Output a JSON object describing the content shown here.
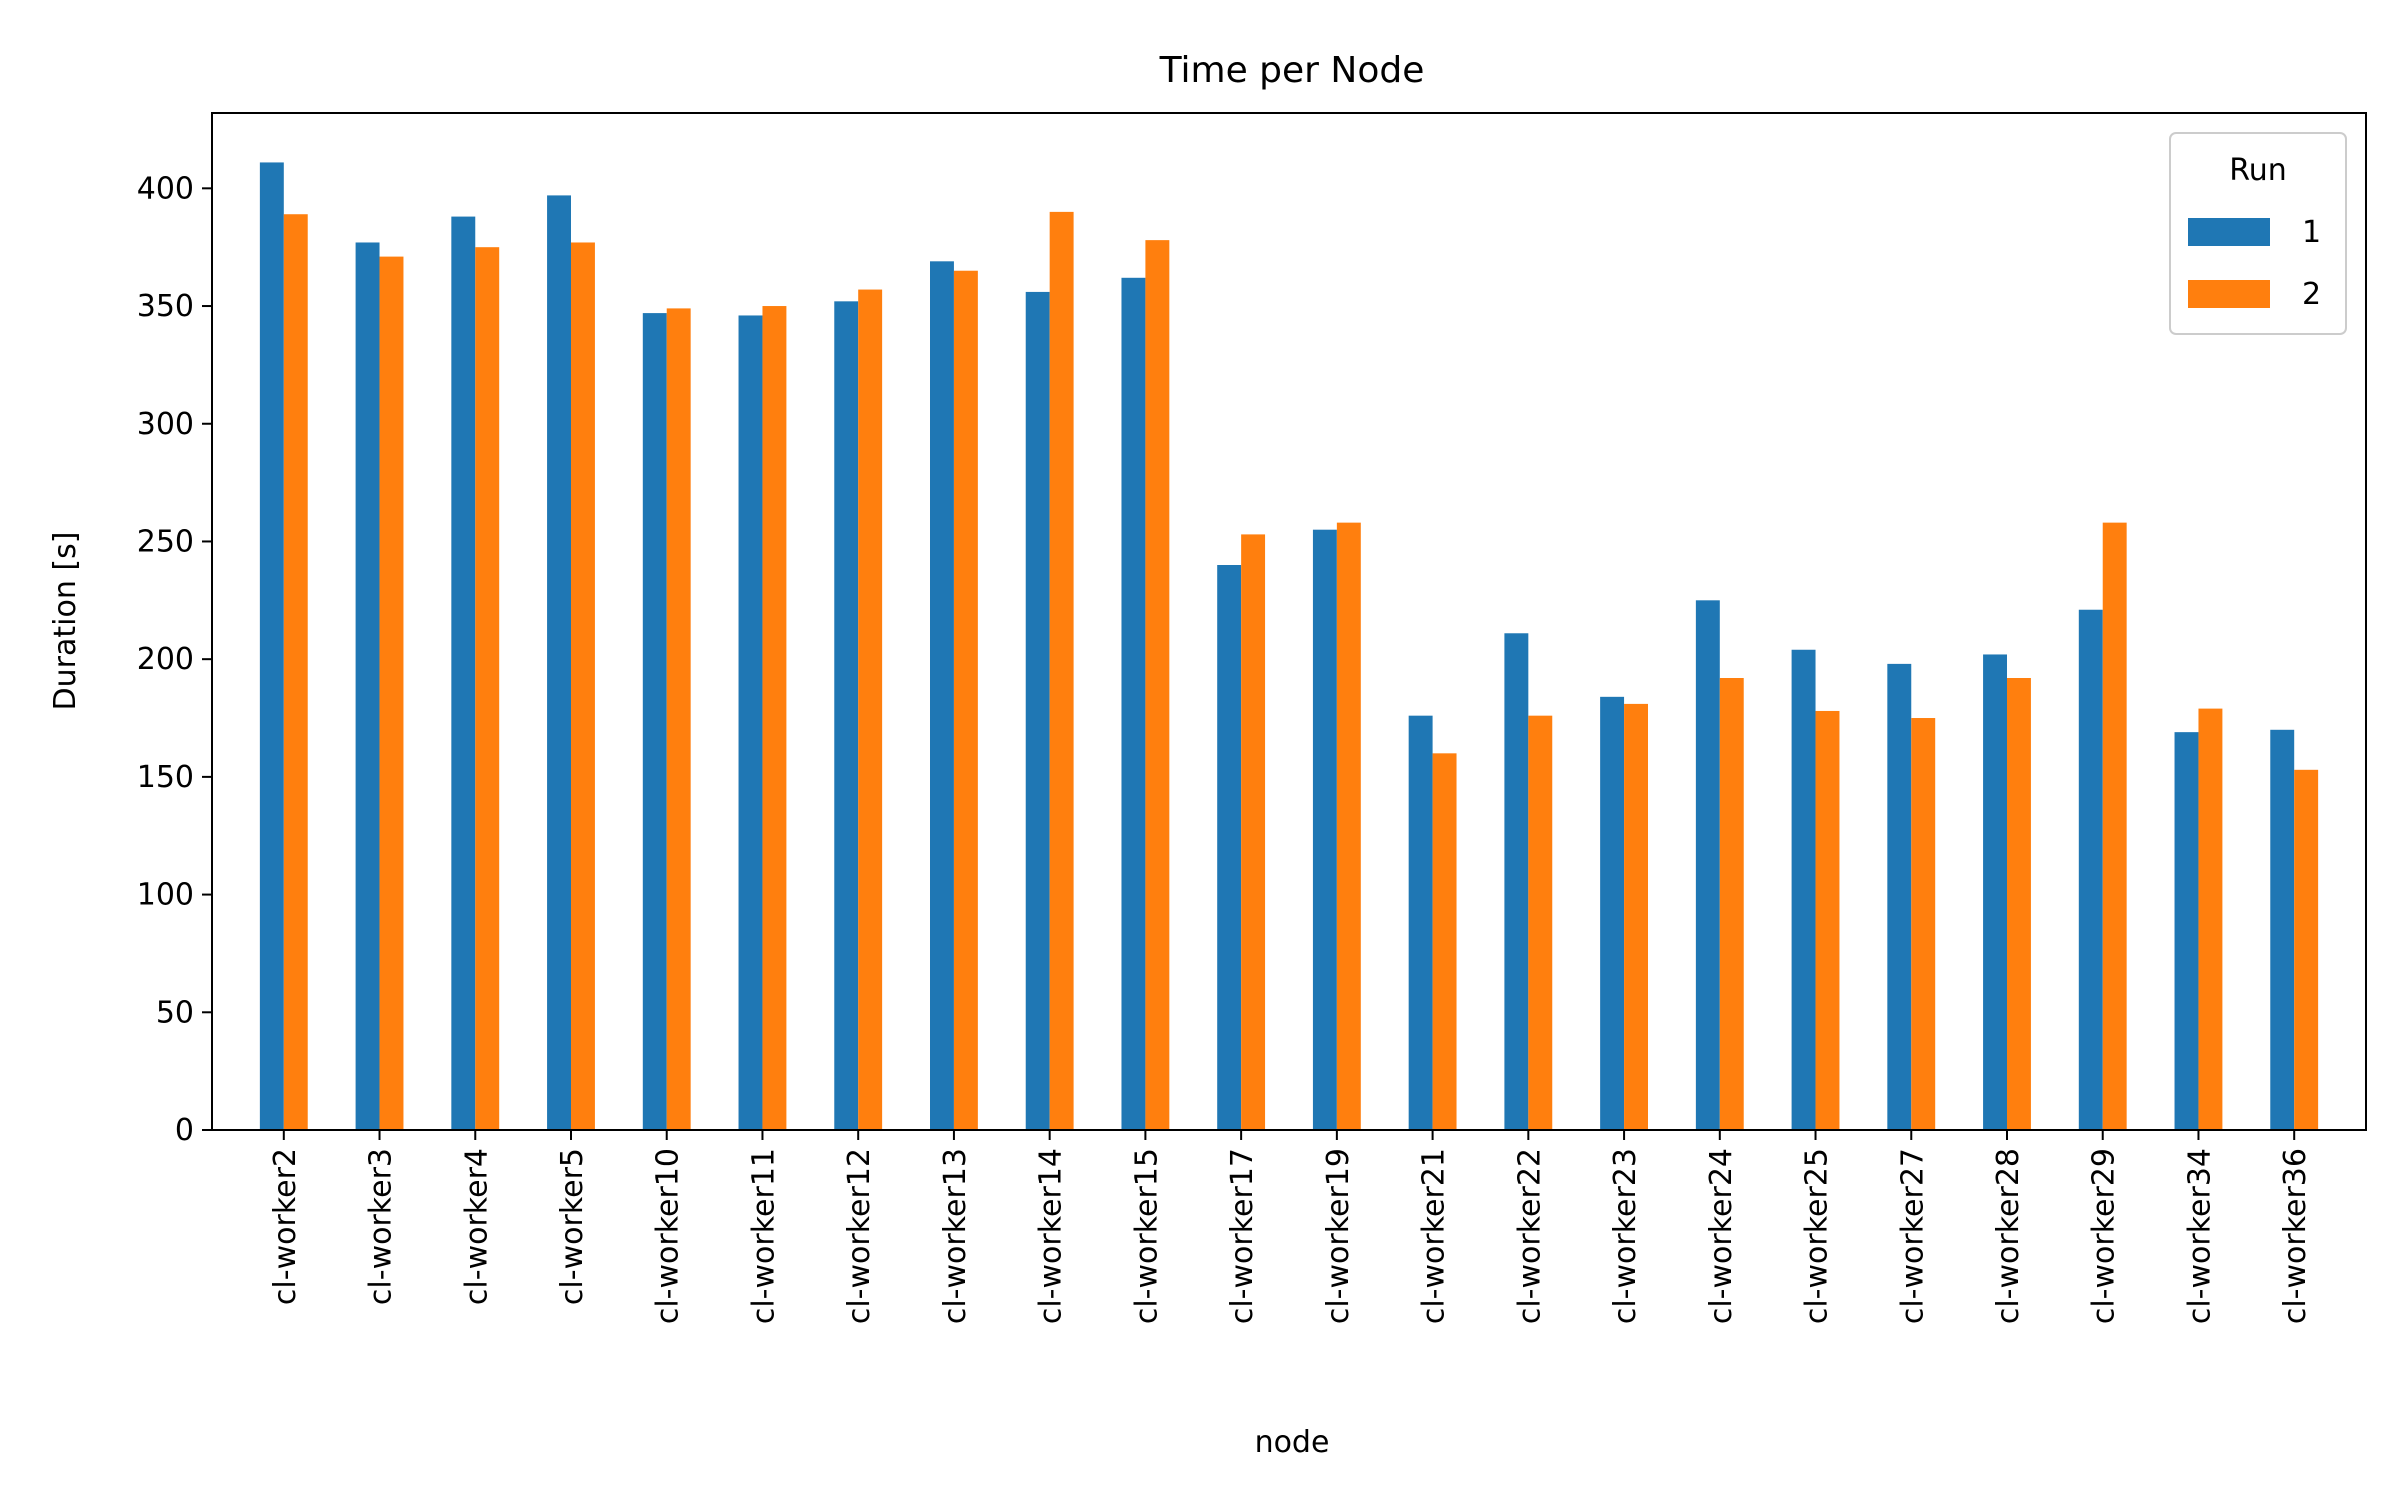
{
  "chart_data": {
    "type": "bar",
    "title": "Time per Node",
    "xlabel": "node",
    "ylabel": "Duration [s]",
    "ylim": [
      0,
      432
    ],
    "yticks": [
      0,
      50,
      100,
      150,
      200,
      250,
      300,
      350,
      400
    ],
    "grid": false,
    "legend": {
      "title": "Run",
      "position": "top-right"
    },
    "categories": [
      "cl-worker2",
      "cl-worker3",
      "cl-worker4",
      "cl-worker5",
      "cl-worker10",
      "cl-worker11",
      "cl-worker12",
      "cl-worker13",
      "cl-worker14",
      "cl-worker15",
      "cl-worker17",
      "cl-worker19",
      "cl-worker21",
      "cl-worker22",
      "cl-worker23",
      "cl-worker24",
      "cl-worker25",
      "cl-worker27",
      "cl-worker28",
      "cl-worker29",
      "cl-worker34",
      "cl-worker36"
    ],
    "series": [
      {
        "name": "1",
        "color": "#1f77b4",
        "values": [
          411,
          377,
          388,
          397,
          347,
          346,
          352,
          369,
          356,
          362,
          240,
          255,
          176,
          211,
          184,
          225,
          204,
          198,
          202,
          221,
          169,
          170
        ]
      },
      {
        "name": "2",
        "color": "#ff7f0e",
        "values": [
          389,
          371,
          375,
          377,
          349,
          350,
          357,
          365,
          390,
          378,
          253,
          258,
          160,
          176,
          181,
          192,
          178,
          175,
          192,
          258,
          179,
          153
        ]
      }
    ]
  }
}
